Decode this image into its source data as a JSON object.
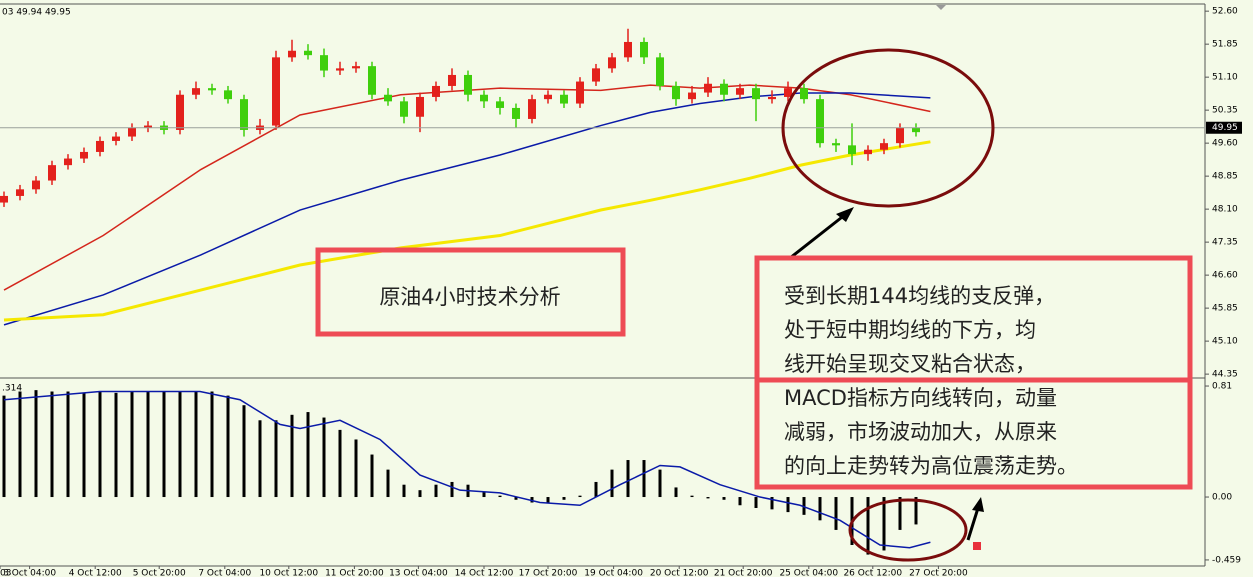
{
  "chart_data": [
    {
      "type": "candlestick",
      "header": "03 49.94 49.95",
      "up_color": "#e3211c",
      "down_color": "#3fcf0c",
      "ylim": [
        44.33,
        52.74
      ],
      "yticks": [
        {
          "value": 52.6,
          "label": "52.60"
        },
        51.85,
        {
          "value": 51.1,
          "label": "51.10"
        },
        50.35,
        {
          "value": 49.6,
          "label": "49.60"
        },
        48.85,
        {
          "value": 48.1,
          "label": "48.10"
        },
        47.35,
        {
          "value": 46.6,
          "label": "46.60"
        },
        45.85,
        {
          "value": 45.1,
          "label": "45.10"
        },
        44.35
      ],
      "last_price": 49.95,
      "open": [
        48.25,
        48.4,
        48.55,
        48.75,
        49.1,
        49.25,
        49.4,
        49.65,
        49.75,
        49.95,
        50.0,
        49.9,
        50.7,
        50.85,
        50.8,
        50.6,
        49.9,
        50.0,
        51.55,
        51.7,
        51.6,
        51.25,
        51.3,
        51.35,
        50.7,
        50.55,
        50.2,
        50.65,
        50.9,
        51.15,
        50.7,
        50.55,
        50.4,
        50.15,
        50.6,
        50.7,
        50.5,
        51.0,
        51.3,
        51.55,
        51.9,
        51.55,
        50.9,
        50.6,
        50.75,
        50.95,
        50.7,
        50.85,
        50.6,
        50.65,
        50.85,
        50.6,
        49.6,
        49.55,
        49.35,
        49.45,
        49.6,
        49.95
      ],
      "high": [
        48.5,
        48.65,
        48.85,
        49.2,
        49.35,
        49.5,
        49.75,
        49.85,
        50.05,
        50.1,
        50.1,
        50.8,
        51.0,
        50.95,
        50.9,
        50.7,
        50.15,
        51.7,
        51.95,
        51.85,
        51.75,
        51.45,
        51.45,
        51.45,
        50.85,
        50.65,
        50.75,
        51.0,
        51.3,
        51.25,
        50.8,
        50.65,
        50.5,
        50.7,
        50.8,
        50.8,
        51.1,
        51.4,
        51.65,
        52.2,
        52.0,
        51.65,
        51.0,
        50.9,
        51.1,
        51.05,
        50.95,
        50.95,
        50.8,
        51.0,
        50.95,
        50.7,
        49.7,
        50.05,
        49.55,
        49.7,
        50.05,
        50.05
      ],
      "low": [
        48.15,
        48.3,
        48.45,
        48.65,
        49.0,
        49.15,
        49.3,
        49.55,
        49.65,
        49.85,
        49.8,
        49.8,
        50.6,
        50.7,
        50.5,
        49.75,
        49.8,
        49.9,
        51.45,
        51.5,
        51.1,
        51.15,
        51.2,
        50.6,
        50.45,
        50.05,
        49.85,
        50.55,
        50.8,
        50.55,
        50.4,
        50.25,
        49.95,
        50.05,
        50.5,
        50.4,
        50.4,
        50.9,
        51.2,
        51.45,
        51.4,
        50.8,
        50.45,
        50.5,
        50.65,
        50.55,
        50.6,
        50.1,
        50.5,
        50.55,
        50.5,
        49.5,
        49.4,
        49.1,
        49.2,
        49.35,
        49.5,
        49.75
      ],
      "close": [
        48.4,
        48.55,
        48.75,
        49.1,
        49.25,
        49.4,
        49.65,
        49.75,
        49.95,
        50.0,
        49.9,
        50.7,
        50.85,
        50.8,
        50.6,
        49.9,
        50.0,
        51.55,
        51.7,
        51.6,
        51.25,
        51.3,
        51.35,
        50.7,
        50.55,
        50.2,
        50.65,
        50.9,
        51.15,
        50.7,
        50.55,
        50.4,
        50.15,
        50.6,
        50.7,
        50.5,
        51.0,
        51.3,
        51.55,
        51.9,
        51.55,
        50.9,
        50.6,
        50.75,
        50.95,
        50.7,
        50.85,
        50.6,
        50.65,
        50.85,
        50.6,
        49.6,
        49.55,
        49.35,
        49.45,
        49.6,
        49.95,
        49.85
      ],
      "lines": [
        {
          "color": "#d4261c",
          "x": [
            0,
            6.2,
            12.3,
            18.5,
            24.8,
            31,
            37.3,
            40.4,
            43.5,
            46.6,
            49.8,
            52.9,
            57.9
          ],
          "values": [
            46.26,
            47.5,
            49.0,
            50.24,
            50.7,
            50.85,
            50.8,
            50.92,
            50.85,
            50.92,
            50.85,
            50.7,
            50.32
          ]
        },
        {
          "color": "#0a1aa8",
          "x": [
            0,
            6.2,
            12.3,
            18.5,
            24.8,
            31,
            37.3,
            40.4,
            43.5,
            46.6,
            49.8,
            52.9,
            57.9
          ],
          "values": [
            45.47,
            46.15,
            47.06,
            48.08,
            48.76,
            49.33,
            50.0,
            50.3,
            50.5,
            50.65,
            50.74,
            50.74,
            50.63
          ]
        },
        {
          "color": "#f5e800",
          "x": [
            0,
            6.2,
            12.3,
            18.5,
            24.8,
            31,
            37.3,
            40.4,
            43.5,
            46.6,
            49.8,
            52.9,
            57.9
          ],
          "values": [
            45.58,
            45.7,
            46.26,
            46.83,
            47.22,
            47.5,
            48.08,
            48.3,
            48.54,
            48.8,
            49.1,
            49.33,
            49.63
          ]
        }
      ],
      "annotations": {
        "title_box": "原油4小时技术分析",
        "comment": [
          "受到长期144均线的支反弹，",
          "处于短中期均线的下方，均",
          "线开始呈现交叉粘合状态，",
          "MACD指标方向线转向，动量",
          "减弱，市场波动加大，从原来",
          "的向上走势转为高位震荡走势。"
        ]
      }
    },
    {
      "type": "bar",
      "indicator_label": ".314",
      "color": "#000000",
      "ylim": [
        -0.496,
        0.854
      ],
      "yticks": [
        0.81,
        {
          "value": 0,
          "label": "0.00"
        },
        -0.459
      ],
      "values": [
        0.74,
        0.77,
        0.78,
        0.77,
        0.77,
        0.76,
        0.77,
        0.76,
        0.77,
        0.77,
        0.77,
        0.77,
        0.77,
        0.77,
        0.74,
        0.67,
        0.56,
        0.56,
        0.6,
        0.62,
        0.58,
        0.49,
        0.42,
        0.31,
        0.2,
        0.09,
        0.05,
        0.09,
        0.11,
        0.09,
        0.04,
        0.01,
        -0.02,
        -0.04,
        -0.04,
        -0.02,
        0.01,
        0.11,
        0.2,
        0.27,
        0.27,
        0.2,
        0.07,
        0.01,
        -0.01,
        -0.02,
        -0.06,
        -0.08,
        -0.09,
        -0.11,
        -0.13,
        -0.17,
        -0.24,
        -0.35,
        -0.42,
        -0.39,
        -0.24,
        -0.2
      ],
      "signal": {
        "color": "#0a1aa8",
        "x": [
          0,
          6,
          12.25,
          14.75,
          17.25,
          18.5,
          21,
          23.5,
          26,
          28.5,
          31,
          33.5,
          36,
          38.5,
          41,
          42.25,
          44.75,
          47.25,
          49.75,
          52.25,
          54.75,
          56.6,
          57.9
        ],
        "values": [
          0.71,
          0.77,
          0.77,
          0.71,
          0.53,
          0.5,
          0.56,
          0.42,
          0.16,
          0.05,
          0.03,
          -0.04,
          -0.06,
          0.09,
          0.23,
          0.22,
          0.09,
          0.0,
          -0.06,
          -0.17,
          -0.35,
          -0.37,
          -0.33
        ]
      },
      "xticks": [
        {
          "value": -0.25,
          "label": "03"
        },
        {
          "value": 1.6,
          "label": "3 Oct 04:00"
        },
        {
          "value": 5.7,
          "label": "4 Oct 12:00"
        },
        {
          "value": 9.7,
          "label": "5 Oct 20:00"
        },
        {
          "value": 13.8,
          "label": "7 Oct 04:00"
        },
        {
          "value": 17.8,
          "label": "10 Oct 12:00"
        },
        {
          "value": 21.9,
          "label": "11 Oct 20:00"
        },
        {
          "value": 25.9,
          "label": "13 Oct 04:00"
        },
        {
          "value": 30.0,
          "label": "14 Oct 12:00"
        },
        {
          "value": 34.0,
          "label": "17 Oct 20:00"
        },
        {
          "value": 38.1,
          "label": "19 Oct 04:00"
        },
        {
          "value": 42.2,
          "label": "20 Oct 12:00"
        },
        {
          "value": 46.2,
          "label": "21 Oct 20:00"
        },
        {
          "value": 50.3,
          "label": "25 Oct 04:00"
        },
        {
          "value": 54.3,
          "label": "26 Oct 12:00"
        },
        {
          "value": 58.4,
          "label": "27 Oct 20:00"
        }
      ]
    }
  ]
}
